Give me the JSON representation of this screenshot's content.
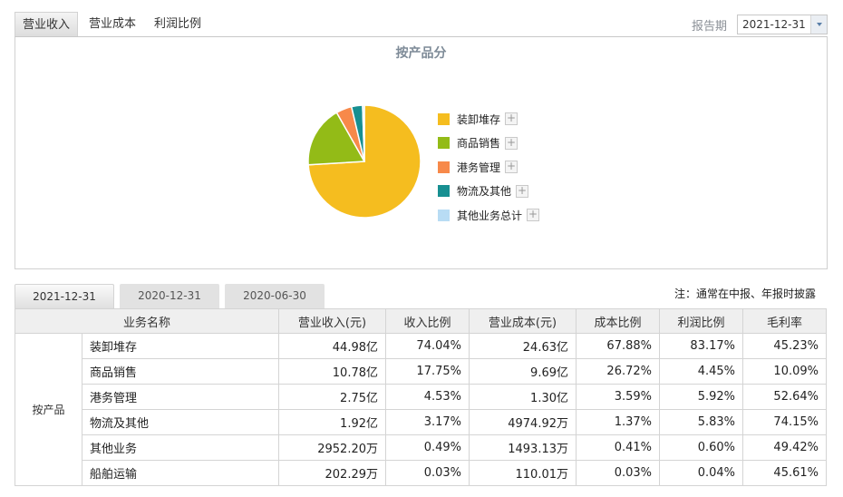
{
  "top_tabs": [
    {
      "label": "营业收入",
      "active": true
    },
    {
      "label": "营业成本",
      "active": false
    },
    {
      "label": "利润比例",
      "active": false
    }
  ],
  "report_period": {
    "label": "报告期",
    "value": "2021-12-31"
  },
  "chart": {
    "title": "按产品分",
    "legend": [
      {
        "label": "装卸堆存",
        "color": "#f5bd1f"
      },
      {
        "label": "商品销售",
        "color": "#93bb17"
      },
      {
        "label": "港务管理",
        "color": "#f7894a"
      },
      {
        "label": "物流及其他",
        "color": "#178f91"
      },
      {
        "label": "其他业务总计",
        "color": "#b8dcf4"
      }
    ],
    "plus_label": "+"
  },
  "chart_data": {
    "type": "pie",
    "title": "按产品分",
    "categories": [
      "装卸堆存",
      "商品销售",
      "港务管理",
      "物流及其他",
      "其他业务总计"
    ],
    "values": [
      74.04,
      17.75,
      4.53,
      3.17,
      0.52
    ],
    "colors": [
      "#f5bd1f",
      "#93bb17",
      "#f7894a",
      "#178f91",
      "#b8dcf4"
    ],
    "legend_position": "right"
  },
  "date_tabs": [
    {
      "label": "2021-12-31",
      "active": true
    },
    {
      "label": "2020-12-31",
      "active": false
    },
    {
      "label": "2020-06-30",
      "active": false
    }
  ],
  "note": "注：通常在中报、年报时披露",
  "table": {
    "headers": [
      "业务名称",
      "营业收入(元)",
      "收入比例",
      "营业成本(元)",
      "成本比例",
      "利润比例",
      "毛利率"
    ],
    "group": "按产品",
    "rows": [
      {
        "name": "装卸堆存",
        "revenue": "44.98亿",
        "rev_ratio": "74.04%",
        "cost": "24.63亿",
        "cost_ratio": "67.88%",
        "profit_ratio": "83.17%",
        "margin": "45.23%"
      },
      {
        "name": "商品销售",
        "revenue": "10.78亿",
        "rev_ratio": "17.75%",
        "cost": "9.69亿",
        "cost_ratio": "26.72%",
        "profit_ratio": "4.45%",
        "margin": "10.09%"
      },
      {
        "name": "港务管理",
        "revenue": "2.75亿",
        "rev_ratio": "4.53%",
        "cost": "1.30亿",
        "cost_ratio": "3.59%",
        "profit_ratio": "5.92%",
        "margin": "52.64%"
      },
      {
        "name": "物流及其他",
        "revenue": "1.92亿",
        "rev_ratio": "3.17%",
        "cost": "4974.92万",
        "cost_ratio": "1.37%",
        "profit_ratio": "5.83%",
        "margin": "74.15%"
      },
      {
        "name": "其他业务",
        "revenue": "2952.20万",
        "rev_ratio": "0.49%",
        "cost": "1493.13万",
        "cost_ratio": "0.41%",
        "profit_ratio": "0.60%",
        "margin": "49.42%"
      },
      {
        "name": "船舶运输",
        "revenue": "202.29万",
        "rev_ratio": "0.03%",
        "cost": "110.01万",
        "cost_ratio": "0.03%",
        "profit_ratio": "0.04%",
        "margin": "45.61%"
      }
    ]
  }
}
